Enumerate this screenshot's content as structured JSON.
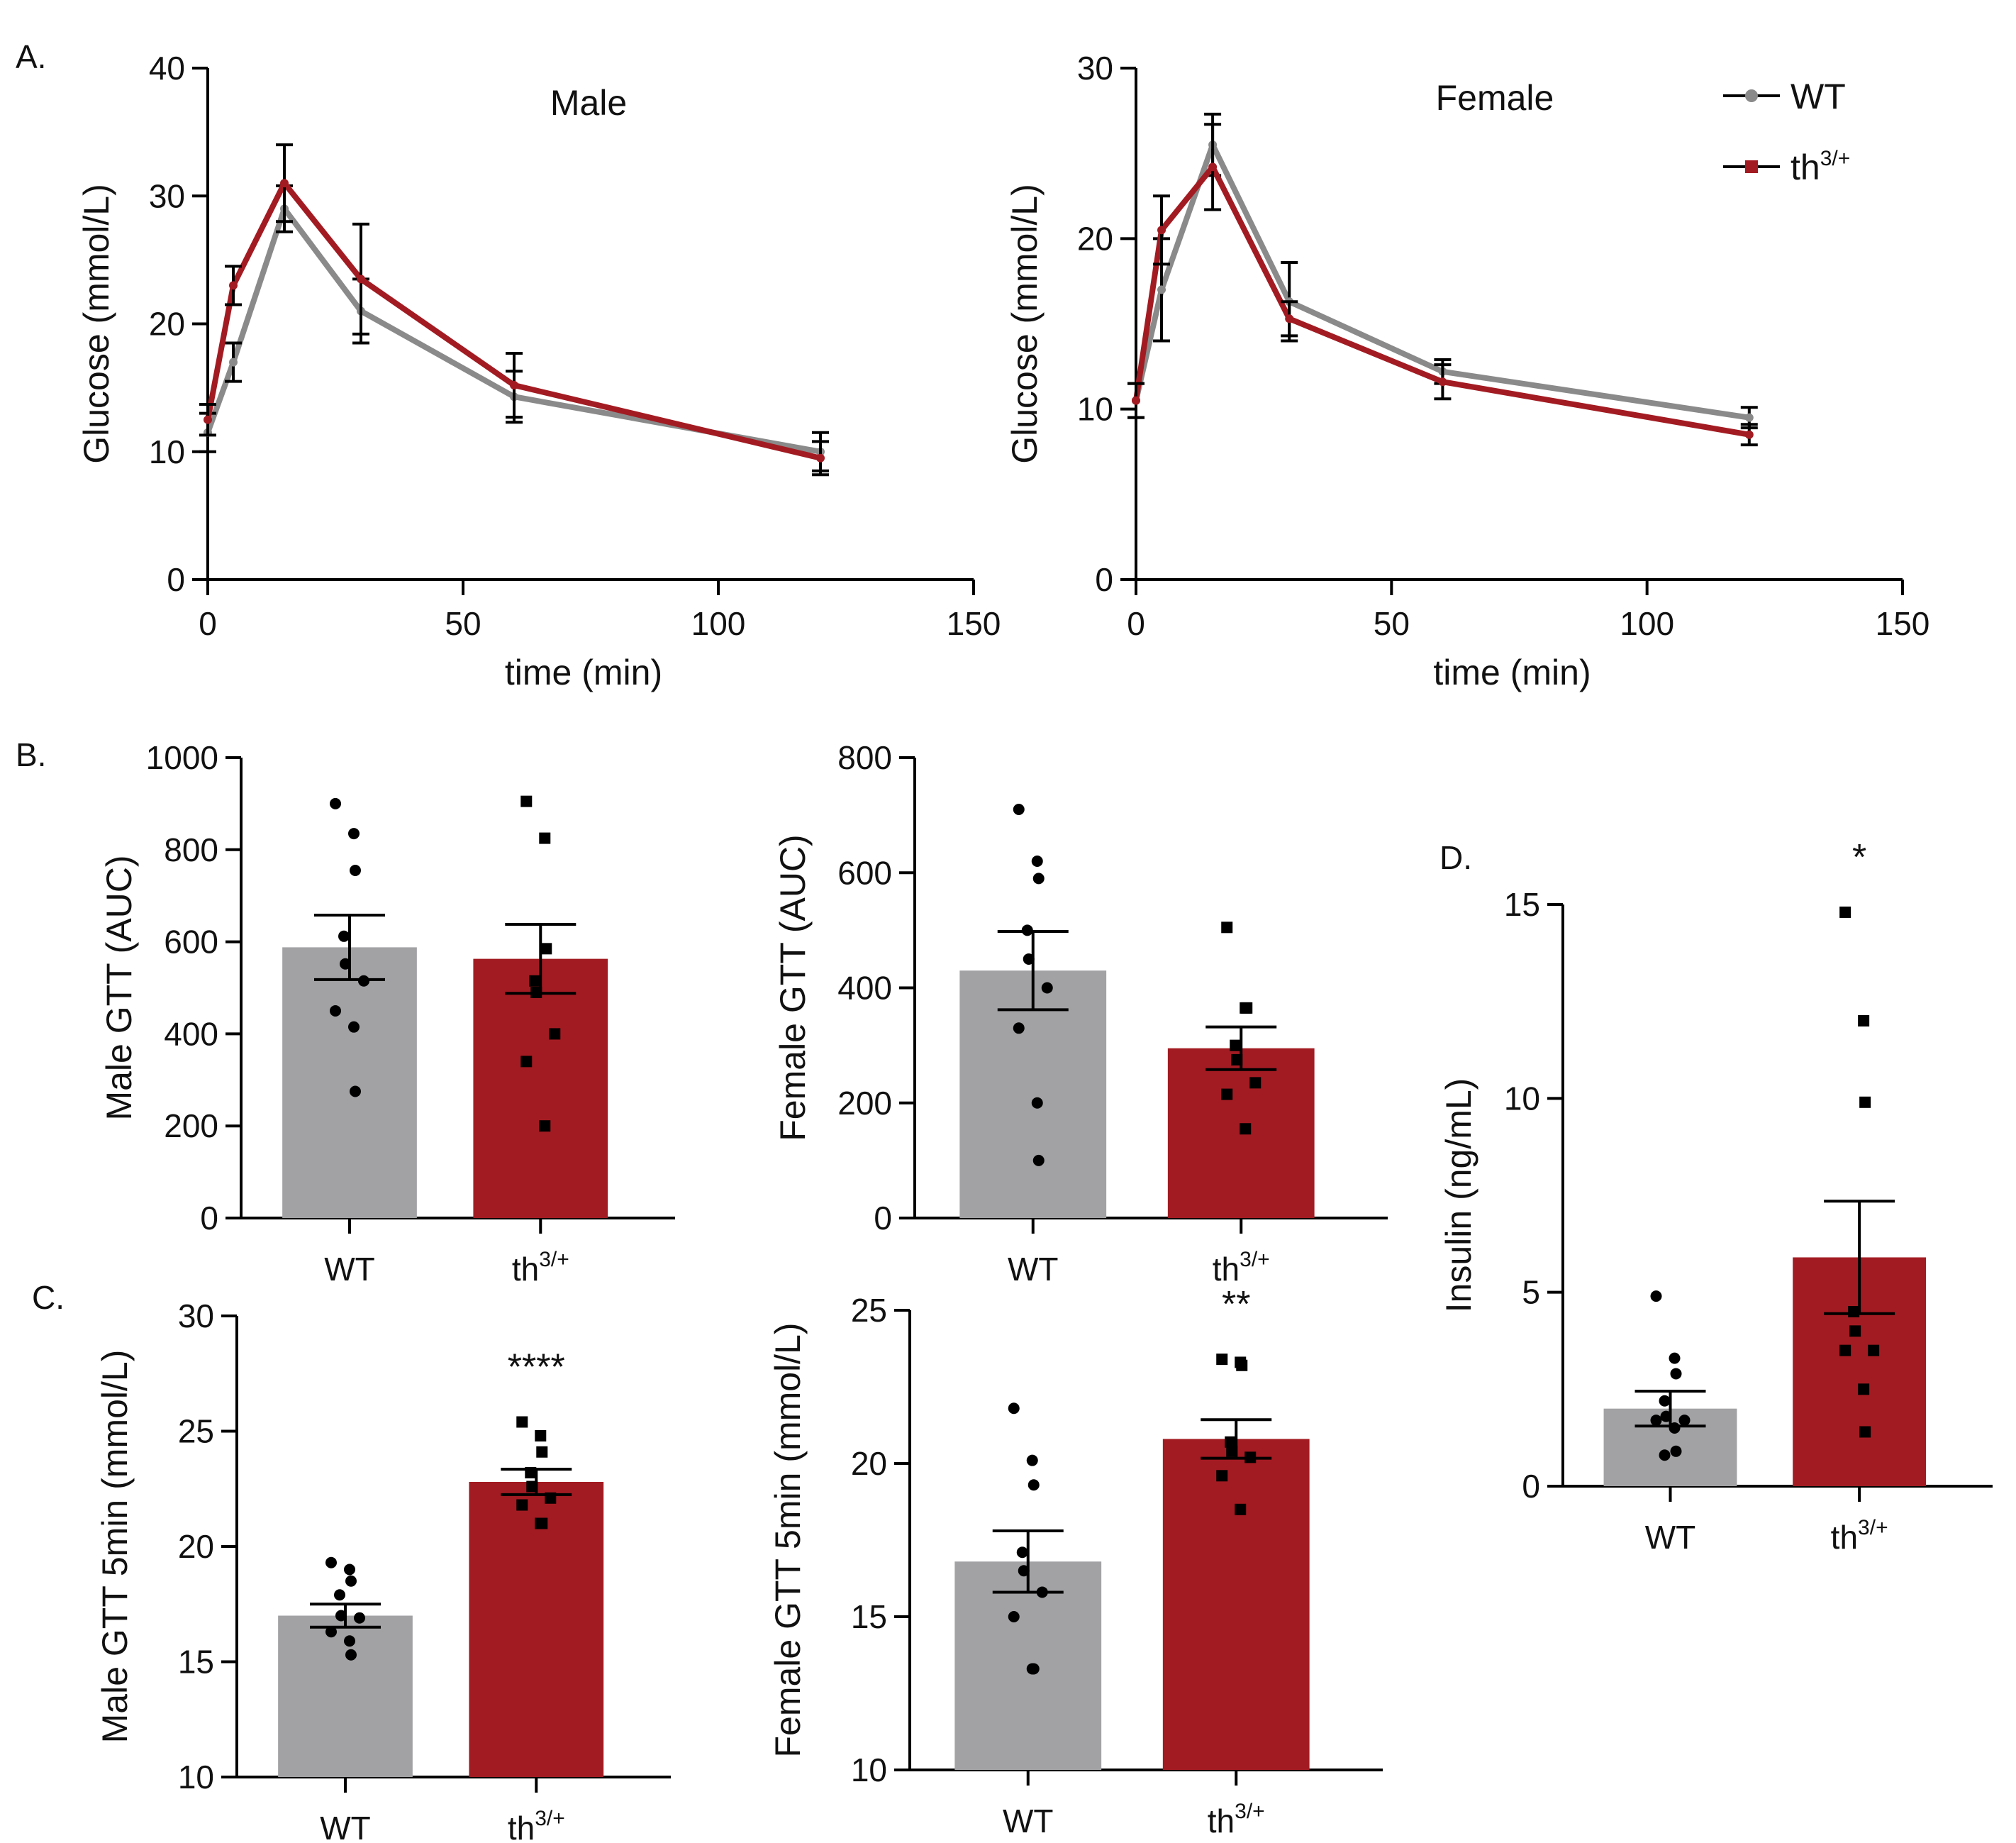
{
  "figure": {
    "colors": {
      "wt": "#8a8a8a",
      "wt_bar": "#a2a2a5",
      "mut": "#a31b22",
      "point": "#000000"
    }
  },
  "chart_data": [
    {
      "id": "A-male",
      "type": "line",
      "panel_letter": "A.",
      "title": "Male",
      "xlabel": "time (min)",
      "ylabel": "Glucose (mmol/L)",
      "xlim": [
        0,
        150
      ],
      "ylim": [
        0,
        40
      ],
      "xticks": [
        "0",
        "50",
        "100",
        "150"
      ],
      "yticks": [
        "0",
        "10",
        "20",
        "30",
        "40"
      ],
      "series": [
        {
          "name": "WT",
          "x": [
            0,
            5,
            15,
            30,
            60,
            120
          ],
          "y": [
            11.5,
            17,
            29,
            21,
            14.3,
            10
          ],
          "err": [
            1.5,
            1.5,
            1.8,
            2.5,
            2.0,
            1.5
          ]
        },
        {
          "name": "th3/+",
          "x": [
            0,
            5,
            15,
            30,
            60,
            120
          ],
          "y": [
            12.5,
            23,
            31,
            23.5,
            15.2,
            9.5
          ],
          "err": [
            1.2,
            1.5,
            3.0,
            4.3,
            2.5,
            1.3
          ]
        }
      ]
    },
    {
      "id": "A-female",
      "type": "line",
      "title": "Female",
      "xlabel": "time (min)",
      "ylabel": "Glucose (mmol/L)",
      "xlim": [
        0,
        150
      ],
      "ylim": [
        0,
        30
      ],
      "xticks": [
        "0",
        "50",
        "100",
        "150"
      ],
      "yticks": [
        "0",
        "10",
        "20",
        "30"
      ],
      "legend": {
        "position": "top-right",
        "entries": [
          {
            "base": "WT",
            "sup": ""
          },
          {
            "base": "th",
            "sup": "3/+"
          }
        ]
      },
      "series": [
        {
          "name": "WT",
          "x": [
            0,
            5,
            15,
            30,
            60,
            120
          ],
          "y": [
            10.5,
            17,
            25.5,
            16.3,
            12.2,
            9.5
          ],
          "err": [
            1.0,
            3.0,
            1.8,
            2.3,
            0.7,
            0.6
          ]
        },
        {
          "name": "th3/+",
          "x": [
            0,
            5,
            15,
            30,
            60,
            120
          ],
          "y": [
            10.5,
            20.5,
            24.2,
            15.3,
            11.6,
            8.5
          ],
          "err": [
            1.0,
            2.0,
            2.5,
            1.0,
            1.0,
            0.6
          ]
        }
      ]
    },
    {
      "id": "B-male",
      "type": "bar",
      "panel_letter": "B.",
      "ylabel": "Male GTT (AUC)",
      "ylim": [
        0,
        1000
      ],
      "yticks": [
        "0",
        "200",
        "400",
        "600",
        "800",
        "1000"
      ],
      "categories": [
        {
          "base": "WT",
          "sup": ""
        },
        {
          "base": "th",
          "sup": "3/+"
        }
      ],
      "values": [
        588,
        563
      ],
      "sem": [
        70,
        75
      ],
      "points": [
        [
          900,
          835,
          755,
          612,
          552,
          515,
          450,
          415,
          275
        ],
        [
          905,
          825,
          585,
          515,
          490,
          400,
          340,
          200
        ]
      ],
      "significance": [
        "",
        ""
      ]
    },
    {
      "id": "B-female",
      "type": "bar",
      "ylabel": "Female GTT (AUC)",
      "ylim": [
        0,
        800
      ],
      "yticks": [
        "0",
        "200",
        "400",
        "600",
        "800"
      ],
      "categories": [
        {
          "base": "WT",
          "sup": ""
        },
        {
          "base": "th",
          "sup": "3/+"
        }
      ],
      "values": [
        430,
        295
      ],
      "sem": [
        68,
        37
      ],
      "points": [
        [
          710,
          620,
          590,
          500,
          450,
          400,
          330,
          200,
          100
        ],
        [
          505,
          365,
          365,
          300,
          275,
          235,
          215,
          155
        ]
      ],
      "significance": [
        "",
        ""
      ]
    },
    {
      "id": "C-male",
      "type": "bar",
      "panel_letter": "C.",
      "ylabel": "Male GTT 5min (mmol/L)",
      "ylim": [
        10,
        30
      ],
      "yticks": [
        "10",
        "15",
        "20",
        "25",
        "30"
      ],
      "categories": [
        {
          "base": "WT",
          "sup": ""
        },
        {
          "base": "th",
          "sup": "3/+"
        }
      ],
      "values": [
        17.0,
        22.8
      ],
      "sem": [
        0.5,
        0.55
      ],
      "points": [
        [
          19.3,
          19.0,
          18.5,
          17.9,
          17.0,
          16.9,
          16.3,
          15.9,
          15.3
        ],
        [
          25.4,
          24.8,
          24.1,
          23.2,
          22.6,
          22.1,
          21.8,
          21.0,
          21.0
        ]
      ],
      "significance": [
        "",
        "****"
      ]
    },
    {
      "id": "C-female",
      "type": "bar",
      "ylabel": "Female GTT 5min (mmol/L)",
      "ylim": [
        10,
        25
      ],
      "yticks": [
        "10",
        "15",
        "20",
        "25"
      ],
      "categories": [
        {
          "base": "WT",
          "sup": ""
        },
        {
          "base": "th",
          "sup": "3/+"
        }
      ],
      "values": [
        16.8,
        20.8
      ],
      "sem": [
        1.0,
        0.63
      ],
      "points": [
        [
          21.8,
          20.1,
          19.3,
          17.1,
          16.5,
          15.8,
          15.0,
          13.3,
          13.3
        ],
        [
          23.4,
          23.3,
          23.2,
          20.7,
          20.4,
          20.2,
          19.6,
          18.5
        ]
      ],
      "significance": [
        "",
        "**"
      ]
    },
    {
      "id": "D",
      "type": "bar",
      "panel_letter": "D.",
      "ylabel": "Insulin (ng/mL)",
      "ylim": [
        0,
        15
      ],
      "yticks": [
        "0",
        "5",
        "10",
        "15"
      ],
      "categories": [
        {
          "base": "WT",
          "sup": ""
        },
        {
          "base": "th",
          "sup": "3/+"
        }
      ],
      "values": [
        2.0,
        5.9
      ],
      "sem": [
        0.45,
        1.45
      ],
      "points": [
        [
          4.9,
          3.3,
          2.9,
          2.2,
          1.8,
          1.7,
          1.7,
          1.5,
          0.9,
          0.8
        ],
        [
          14.8,
          12.0,
          9.9,
          4.5,
          4.0,
          3.5,
          3.5,
          2.5,
          1.4
        ]
      ],
      "significance": [
        "",
        "*"
      ]
    }
  ]
}
